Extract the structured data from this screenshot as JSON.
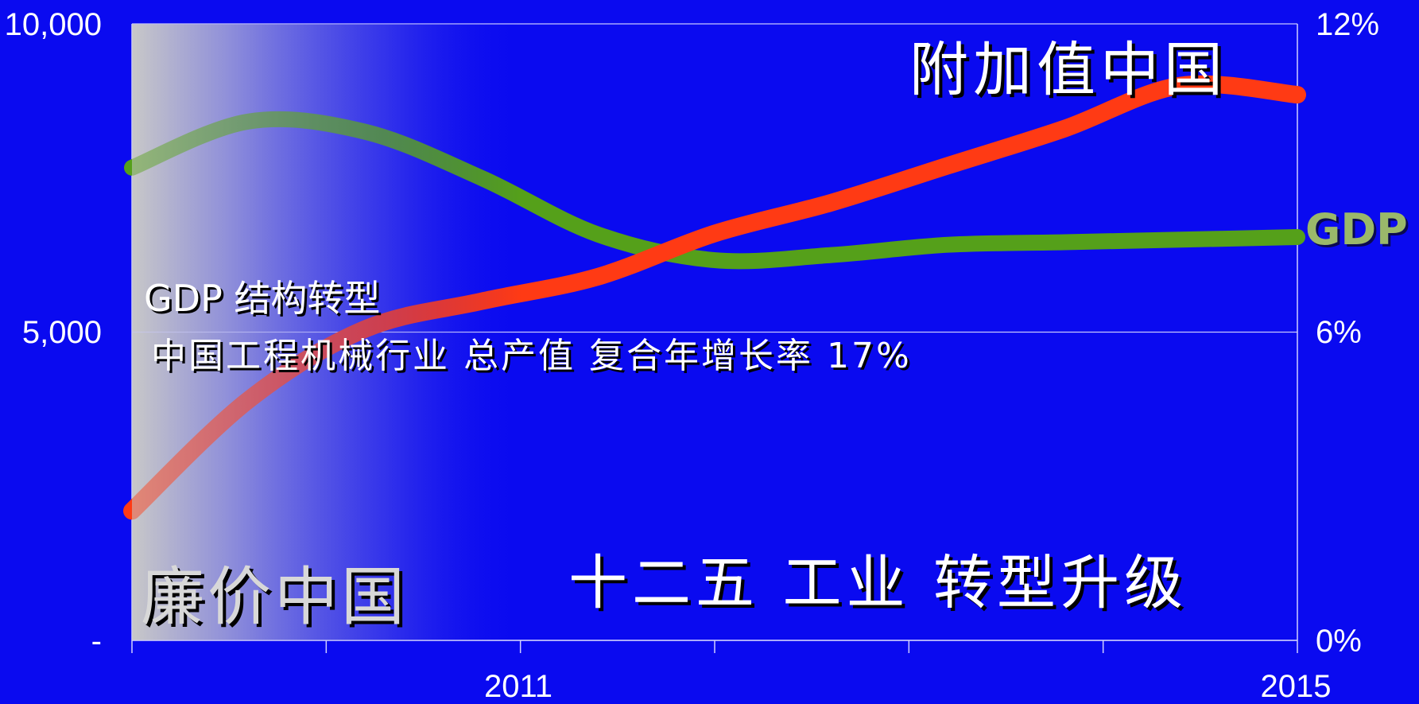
{
  "chart_data": {
    "type": "line",
    "x_ticks": [
      "2011",
      "2015"
    ],
    "y_left_ticks": [
      "10,000",
      "5,000",
      "-"
    ],
    "y_right_ticks": [
      "12%",
      "6%",
      "0%"
    ],
    "ylim_left": [
      0,
      10000
    ],
    "ylim_right": [
      0,
      12
    ],
    "grid": true,
    "series": [
      {
        "name": "GDP",
        "axis": "right",
        "color": "#55a01a",
        "x": [
          2010.0,
          2010.5,
          2011.0,
          2011.5,
          2012.0,
          2012.5,
          2013.0,
          2013.5,
          2014.0,
          2014.5,
          2015.0
        ],
        "y": [
          9.2,
          10.1,
          9.9,
          9.0,
          7.9,
          7.4,
          7.5,
          7.7,
          7.75,
          7.8,
          7.85
        ]
      },
      {
        "name": "",
        "axis": "left",
        "color": "#ff3a14",
        "x": [
          2010.0,
          2010.5,
          2011.0,
          2011.5,
          2012.0,
          2012.5,
          2013.0,
          2013.5,
          2014.0,
          2014.5,
          2015.0
        ],
        "y": [
          2100,
          3900,
          5050,
          5500,
          5900,
          6600,
          7100,
          7700,
          8300,
          9000,
          8850
        ]
      }
    ],
    "annotations": {
      "top_right": "附加值中国",
      "gdp_label": "GDP",
      "gdp_structure": "GDP  结构转型",
      "industry": "中国工程机械行业  总产值  复合年增长率   17%",
      "bottom_left": "廉价中国",
      "bottom_center": "十二五  工业  转型升级"
    }
  },
  "colors": {
    "background": "#0a0af0",
    "gdp_line": "#55a01a",
    "output_line": "#ff3a14",
    "gradient_start": "#c0c0c0"
  }
}
